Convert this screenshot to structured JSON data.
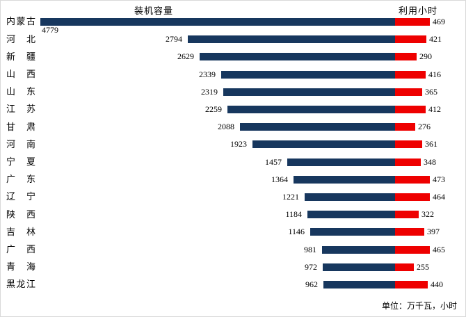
{
  "header": {
    "left_series_label": "装机容量",
    "right_series_label": "利用小时"
  },
  "footer": {
    "unit_note": "单位：万千瓦，小时"
  },
  "colors": {
    "capacity_bar": "#17375E",
    "hours_bar": "#EE0000",
    "text": "#000000"
  },
  "chart_data": {
    "type": "bar",
    "orientation": "horizontal",
    "title": "",
    "legend": [
      "装机容量",
      "利用小时"
    ],
    "legend_position": "top-inline",
    "grid": false,
    "value_labels_shown": true,
    "shared_scale": true,
    "xlim": [
      0,
      4779
    ],
    "categories": [
      "内蒙古",
      "河北",
      "新疆",
      "山西",
      "山东",
      "江苏",
      "甘肃",
      "河南",
      "宁夏",
      "广东",
      "辽宁",
      "陕西",
      "吉林",
      "广西",
      "青海",
      "黑龙江"
    ],
    "series": [
      {
        "name": "装机容量",
        "unit": "万千瓦",
        "color": "#17375E",
        "values": [
          4779,
          2794,
          2629,
          2339,
          2319,
          2259,
          2088,
          1923,
          1457,
          1364,
          1221,
          1184,
          1146,
          981,
          972,
          962
        ]
      },
      {
        "name": "利用小时",
        "unit": "小时",
        "color": "#EE0000",
        "values": [
          469,
          421,
          290,
          416,
          365,
          412,
          276,
          361,
          348,
          473,
          464,
          322,
          397,
          465,
          255,
          440
        ]
      }
    ]
  }
}
